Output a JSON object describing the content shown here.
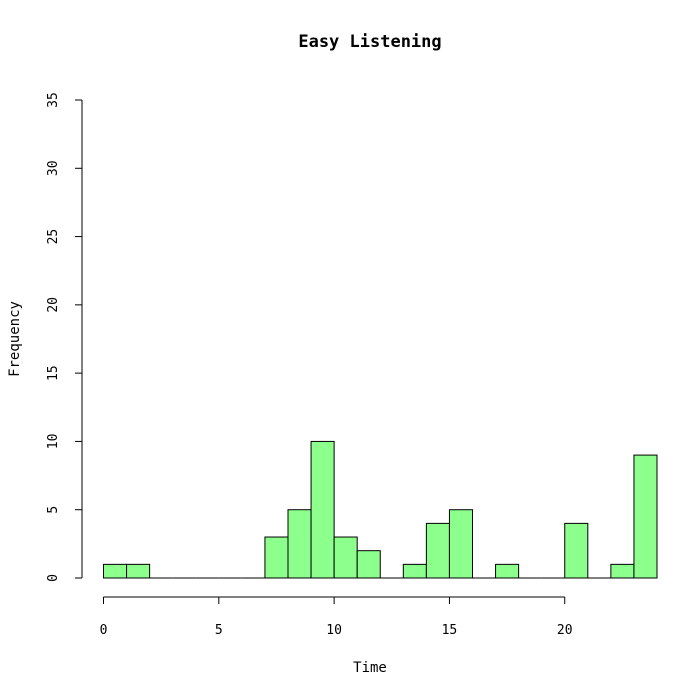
{
  "chart_data": {
    "type": "bar",
    "title": "Easy Listening",
    "xlabel": "Time",
    "ylabel": "Frequency",
    "xlim": [
      0,
      24
    ],
    "ylim": [
      0,
      35
    ],
    "x_ticks": [
      0,
      5,
      10,
      15,
      20
    ],
    "y_ticks": [
      0,
      5,
      10,
      15,
      20,
      25,
      30,
      35
    ],
    "bin_width": 1,
    "bins": [
      {
        "start": 0,
        "end": 1,
        "count": 1
      },
      {
        "start": 1,
        "end": 2,
        "count": 1
      },
      {
        "start": 2,
        "end": 3,
        "count": 0
      },
      {
        "start": 3,
        "end": 4,
        "count": 0
      },
      {
        "start": 4,
        "end": 5,
        "count": 0
      },
      {
        "start": 5,
        "end": 6,
        "count": 0
      },
      {
        "start": 6,
        "end": 7,
        "count": 0
      },
      {
        "start": 7,
        "end": 8,
        "count": 3
      },
      {
        "start": 8,
        "end": 9,
        "count": 5
      },
      {
        "start": 9,
        "end": 10,
        "count": 10
      },
      {
        "start": 10,
        "end": 11,
        "count": 3
      },
      {
        "start": 11,
        "end": 12,
        "count": 2
      },
      {
        "start": 12,
        "end": 13,
        "count": 0
      },
      {
        "start": 13,
        "end": 14,
        "count": 1
      },
      {
        "start": 14,
        "end": 15,
        "count": 4
      },
      {
        "start": 15,
        "end": 16,
        "count": 5
      },
      {
        "start": 16,
        "end": 17,
        "count": 0
      },
      {
        "start": 17,
        "end": 18,
        "count": 1
      },
      {
        "start": 18,
        "end": 19,
        "count": 0
      },
      {
        "start": 19,
        "end": 20,
        "count": 0
      },
      {
        "start": 20,
        "end": 21,
        "count": 4
      },
      {
        "start": 21,
        "end": 22,
        "count": 0
      },
      {
        "start": 22,
        "end": 23,
        "count": 1
      },
      {
        "start": 23,
        "end": 24,
        "count": 9
      }
    ],
    "bar_color": "#8cff8c",
    "grid": false
  }
}
